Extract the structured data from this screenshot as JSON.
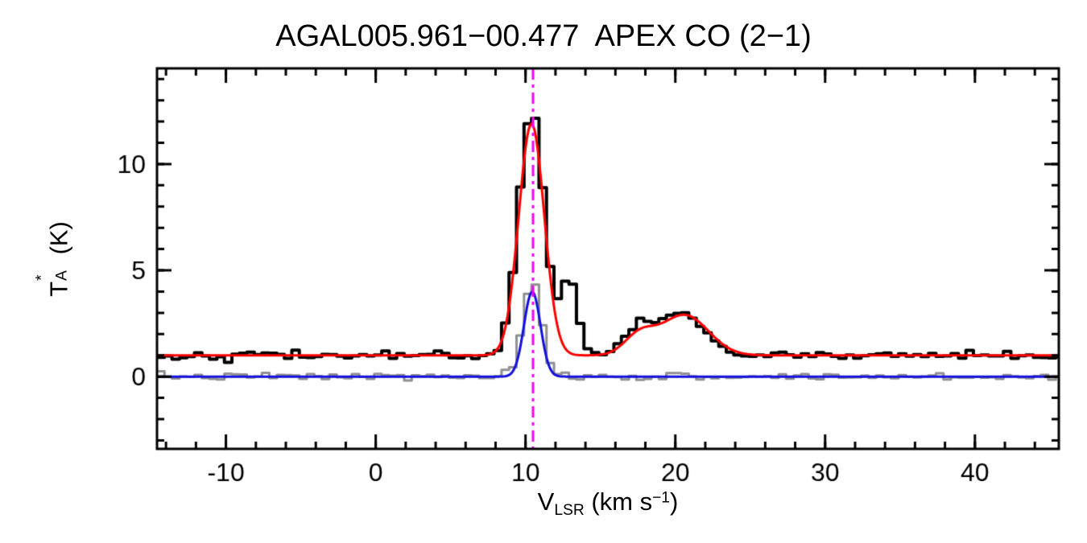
{
  "chart_data": {
    "type": "line",
    "title": "AGAL005.961−00.477  APEX CO (2−1)",
    "xlabel": {
      "base": "V",
      "sub": "LSR",
      "mid": " (km s",
      "sup": "−1",
      "end": ")"
    },
    "ylabel": {
      "base": "T",
      "sup": "*",
      "sub": "A",
      "end": " (K)"
    },
    "xlim": [
      -14.6,
      45.6
    ],
    "ylim": [
      -3.4,
      14.5
    ],
    "x_ticks": {
      "major": [
        -10,
        0,
        10,
        20,
        30,
        40
      ],
      "labels": [
        "-10",
        "0",
        "10",
        "20",
        "30",
        "40"
      ],
      "minor_step": 2
    },
    "y_ticks": {
      "major": [
        0,
        5,
        10
      ],
      "labels": [
        "0",
        "5",
        "10"
      ],
      "minor_step": 1
    },
    "grid": false,
    "legend": null,
    "background_color": "#ffffff",
    "frame_color": "#000000",
    "channel_width": 0.5,
    "series": [
      {
        "name": "observed-co-spectrum",
        "style": "histogram",
        "color": "#000000",
        "line_width": 4,
        "baseline": 1.0,
        "noise_sigma": 0.1,
        "noise_seed": 42,
        "components": [
          {
            "amp": 11.6,
            "center": 10.4,
            "sigma": 0.85
          },
          {
            "amp": 3.6,
            "center": 12.9,
            "sigma": 0.55
          },
          {
            "amp": 1.3,
            "center": 17.6,
            "sigma": 1.0
          },
          {
            "amp": 1.9,
            "center": 20.6,
            "sigma": 1.5
          }
        ]
      },
      {
        "name": "gaussian-fit-observed",
        "style": "line",
        "color": "#ff0000",
        "line_width": 3,
        "baseline": 1.0,
        "noise_sigma": 0,
        "noise_seed": 0,
        "components": [
          {
            "amp": 10.9,
            "center": 10.4,
            "sigma": 0.85
          },
          {
            "amp": 0.9,
            "center": 17.6,
            "sigma": 1.0
          },
          {
            "amp": 1.9,
            "center": 20.6,
            "sigma": 1.6
          }
        ]
      },
      {
        "name": "second-spectrum",
        "style": "histogram",
        "color": "#909090",
        "line_width": 3,
        "baseline": 0.0,
        "noise_sigma": 0.09,
        "noise_seed": 7,
        "components": [
          {
            "amp": 4.5,
            "center": 10.45,
            "sigma": 0.6
          }
        ]
      },
      {
        "name": "gaussian-fit-second",
        "style": "line",
        "color": "#1111dd",
        "line_width": 3,
        "baseline": 0.0,
        "noise_sigma": 0,
        "noise_seed": 0,
        "components": [
          {
            "amp": 4.0,
            "center": 10.45,
            "sigma": 0.55
          }
        ]
      }
    ],
    "reference_line": {
      "name": "systemic-velocity-marker",
      "x": 10.5,
      "color": "#ff00ff",
      "style": "dash-dot",
      "line_width": 3
    }
  }
}
